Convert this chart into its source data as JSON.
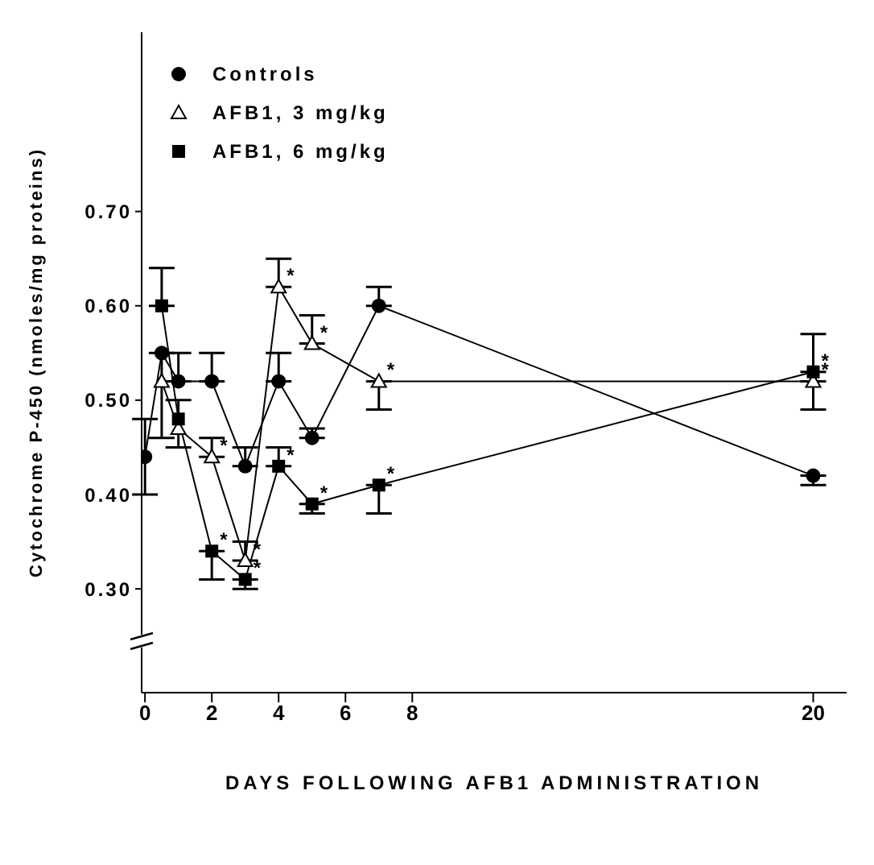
{
  "chart_data": {
    "type": "line",
    "xlabel": "DAYS FOLLOWING AFB1 ADMINISTRATION",
    "ylabel": "Cytochrome P-450 (nmoles/mg proteins)",
    "x": [
      0,
      0.5,
      1,
      2,
      3,
      4,
      5,
      7,
      20
    ],
    "series": [
      {
        "name": "Controls",
        "color": "#000000",
        "marker": "circle",
        "values": [
          0.44,
          0.55,
          0.52,
          0.52,
          0.43,
          0.52,
          0.46,
          0.6,
          0.42
        ],
        "errors": [
          [
            0.4,
            0.48
          ],
          null,
          [
            0.52,
            0.55
          ],
          [
            0.52,
            0.55
          ],
          [
            0.43,
            0.45
          ],
          [
            0.52,
            0.55
          ],
          [
            0.46,
            0.47
          ],
          [
            0.6,
            0.62
          ],
          [
            0.41,
            0.42
          ]
        ]
      },
      {
        "name": "AFB1, 3 mg/kg",
        "color": "#000000",
        "marker": "triangle",
        "values": [
          null,
          0.52,
          0.47,
          0.44,
          0.33,
          0.62,
          0.56,
          0.52,
          0.52
        ],
        "errors": [
          null,
          [
            0.46,
            0.55
          ],
          null,
          [
            0.44,
            0.46
          ],
          [
            0.33,
            0.35
          ],
          [
            0.62,
            0.65
          ],
          [
            0.56,
            0.59
          ],
          [
            0.49,
            0.52
          ],
          [
            0.49,
            0.52
          ]
        ]
      },
      {
        "name": "AFB1, 6 mg/kg",
        "color": "#000000",
        "marker": "square",
        "values": [
          null,
          0.6,
          0.48,
          0.34,
          0.31,
          0.43,
          0.39,
          0.41,
          0.53
        ],
        "errors": [
          null,
          [
            0.6,
            0.64
          ],
          [
            0.45,
            0.5
          ],
          [
            0.31,
            0.34
          ],
          [
            0.3,
            0.31
          ],
          [
            0.43,
            0.45
          ],
          [
            0.38,
            0.39
          ],
          [
            0.38,
            0.41
          ],
          [
            0.53,
            0.57
          ]
        ]
      }
    ],
    "xlim": [
      -0.1,
      21
    ],
    "xticks": [
      0,
      2,
      4,
      6,
      8,
      20
    ],
    "ylim": [
      0.19,
      0.89
    ],
    "yticks": [
      {
        "value": 0.3,
        "label": "0.30"
      },
      {
        "value": 0.4,
        "label": "0.40"
      },
      {
        "value": 0.5,
        "label": "0.50"
      },
      {
        "value": 0.6,
        "label": "0.60"
      },
      {
        "value": 0.7,
        "label": "0.70"
      }
    ],
    "grid": false,
    "legend": "top left",
    "line_style": "solid",
    "annotations": [
      {
        "text": "*",
        "x": 2,
        "y": 0.44
      },
      {
        "text": "*",
        "x": 3,
        "y": 0.33
      },
      {
        "text": "*",
        "x": 4,
        "y": 0.62
      },
      {
        "text": "*",
        "x": 5,
        "y": 0.56
      },
      {
        "text": "*",
        "x": 7,
        "y": 0.52
      },
      {
        "text": "*",
        "x": 20,
        "y": 0.52
      },
      {
        "text": "*",
        "x": 2,
        "y": 0.34
      },
      {
        "text": "*",
        "x": 3,
        "y": 0.31
      },
      {
        "text": "*",
        "x": 4,
        "y": 0.43
      },
      {
        "text": "*",
        "x": 5,
        "y": 0.39
      },
      {
        "text": "*",
        "x": 7,
        "y": 0.41
      },
      {
        "text": "*",
        "x": 20,
        "y": 0.53
      }
    ]
  }
}
